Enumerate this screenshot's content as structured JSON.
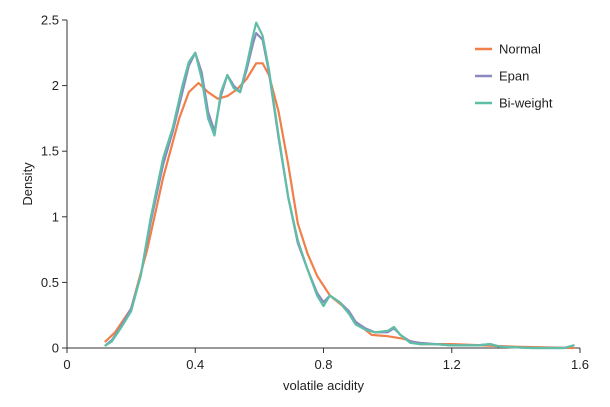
{
  "chart_data": {
    "type": "line",
    "xlabel": "volatile acidity",
    "ylabel": "Density",
    "xlim": [
      0,
      1.6
    ],
    "ylim": [
      0,
      2.5
    ],
    "x_ticks": [
      0,
      0.4,
      0.8,
      1.2,
      1.6
    ],
    "x_tick_labels": [
      "0",
      "0.4",
      "0.8",
      "1.2",
      "1.6"
    ],
    "y_ticks": [
      0,
      0.5,
      1,
      1.5,
      2,
      2.5
    ],
    "y_tick_labels": [
      "0",
      "0.5",
      "1",
      "1.5",
      "2",
      "2.5"
    ],
    "grid": false,
    "legend_position": "top-right",
    "series": [
      {
        "name": "Normal",
        "color": "#F07F4A",
        "points": [
          [
            0.12,
            0.05
          ],
          [
            0.15,
            0.12
          ],
          [
            0.2,
            0.3
          ],
          [
            0.25,
            0.75
          ],
          [
            0.3,
            1.3
          ],
          [
            0.35,
            1.75
          ],
          [
            0.38,
            1.95
          ],
          [
            0.41,
            2.02
          ],
          [
            0.44,
            1.95
          ],
          [
            0.47,
            1.9
          ],
          [
            0.5,
            1.92
          ],
          [
            0.53,
            1.97
          ],
          [
            0.56,
            2.05
          ],
          [
            0.59,
            2.17
          ],
          [
            0.61,
            2.17
          ],
          [
            0.63,
            2.08
          ],
          [
            0.66,
            1.8
          ],
          [
            0.69,
            1.4
          ],
          [
            0.72,
            0.95
          ],
          [
            0.75,
            0.72
          ],
          [
            0.78,
            0.55
          ],
          [
            0.82,
            0.4
          ],
          [
            0.86,
            0.32
          ],
          [
            0.9,
            0.2
          ],
          [
            0.95,
            0.1
          ],
          [
            1.0,
            0.09
          ],
          [
            1.05,
            0.07
          ],
          [
            1.1,
            0.03
          ],
          [
            1.2,
            0.03
          ],
          [
            1.3,
            0.02
          ],
          [
            1.4,
            0.01
          ],
          [
            1.58,
            0.0
          ]
        ]
      },
      {
        "name": "Epan",
        "color": "#8A89C0",
        "points": [
          [
            0.12,
            0.02
          ],
          [
            0.14,
            0.06
          ],
          [
            0.17,
            0.17
          ],
          [
            0.2,
            0.3
          ],
          [
            0.23,
            0.55
          ],
          [
            0.26,
            0.95
          ],
          [
            0.3,
            1.4
          ],
          [
            0.33,
            1.65
          ],
          [
            0.36,
            1.95
          ],
          [
            0.38,
            2.15
          ],
          [
            0.4,
            2.25
          ],
          [
            0.42,
            2.1
          ],
          [
            0.44,
            1.8
          ],
          [
            0.46,
            1.65
          ],
          [
            0.48,
            1.92
          ],
          [
            0.5,
            2.08
          ],
          [
            0.52,
            2.0
          ],
          [
            0.54,
            1.95
          ],
          [
            0.56,
            2.12
          ],
          [
            0.58,
            2.32
          ],
          [
            0.59,
            2.4
          ],
          [
            0.61,
            2.35
          ],
          [
            0.63,
            2.1
          ],
          [
            0.66,
            1.6
          ],
          [
            0.69,
            1.15
          ],
          [
            0.72,
            0.8
          ],
          [
            0.75,
            0.6
          ],
          [
            0.78,
            0.42
          ],
          [
            0.8,
            0.35
          ],
          [
            0.82,
            0.4
          ],
          [
            0.85,
            0.35
          ],
          [
            0.88,
            0.28
          ],
          [
            0.9,
            0.2
          ],
          [
            0.93,
            0.15
          ],
          [
            0.96,
            0.12
          ],
          [
            1.0,
            0.12
          ],
          [
            1.02,
            0.15
          ],
          [
            1.04,
            0.1
          ],
          [
            1.07,
            0.05
          ],
          [
            1.1,
            0.04
          ],
          [
            1.15,
            0.03
          ],
          [
            1.2,
            0.02
          ],
          [
            1.28,
            0.02
          ],
          [
            1.32,
            0.03
          ],
          [
            1.35,
            0.01
          ],
          [
            1.45,
            0.0
          ],
          [
            1.55,
            0.0
          ],
          [
            1.58,
            0.02
          ]
        ]
      },
      {
        "name": "Bi-weight",
        "color": "#5FBFA6",
        "points": [
          [
            0.12,
            0.02
          ],
          [
            0.14,
            0.05
          ],
          [
            0.17,
            0.16
          ],
          [
            0.2,
            0.28
          ],
          [
            0.23,
            0.55
          ],
          [
            0.26,
            0.98
          ],
          [
            0.3,
            1.45
          ],
          [
            0.33,
            1.68
          ],
          [
            0.36,
            2.0
          ],
          [
            0.38,
            2.18
          ],
          [
            0.4,
            2.25
          ],
          [
            0.42,
            2.05
          ],
          [
            0.44,
            1.75
          ],
          [
            0.46,
            1.62
          ],
          [
            0.48,
            1.95
          ],
          [
            0.5,
            2.08
          ],
          [
            0.52,
            1.98
          ],
          [
            0.54,
            1.95
          ],
          [
            0.56,
            2.15
          ],
          [
            0.58,
            2.38
          ],
          [
            0.59,
            2.48
          ],
          [
            0.61,
            2.38
          ],
          [
            0.63,
            2.12
          ],
          [
            0.66,
            1.62
          ],
          [
            0.69,
            1.15
          ],
          [
            0.72,
            0.82
          ],
          [
            0.75,
            0.6
          ],
          [
            0.78,
            0.4
          ],
          [
            0.8,
            0.32
          ],
          [
            0.82,
            0.4
          ],
          [
            0.85,
            0.35
          ],
          [
            0.88,
            0.26
          ],
          [
            0.9,
            0.18
          ],
          [
            0.93,
            0.14
          ],
          [
            0.96,
            0.12
          ],
          [
            1.0,
            0.13
          ],
          [
            1.02,
            0.16
          ],
          [
            1.04,
            0.1
          ],
          [
            1.07,
            0.04
          ],
          [
            1.1,
            0.03
          ],
          [
            1.15,
            0.03
          ],
          [
            1.2,
            0.02
          ],
          [
            1.28,
            0.02
          ],
          [
            1.32,
            0.03
          ],
          [
            1.35,
            0.01
          ],
          [
            1.45,
            0.0
          ],
          [
            1.55,
            0.0
          ],
          [
            1.58,
            0.02
          ]
        ]
      }
    ]
  }
}
